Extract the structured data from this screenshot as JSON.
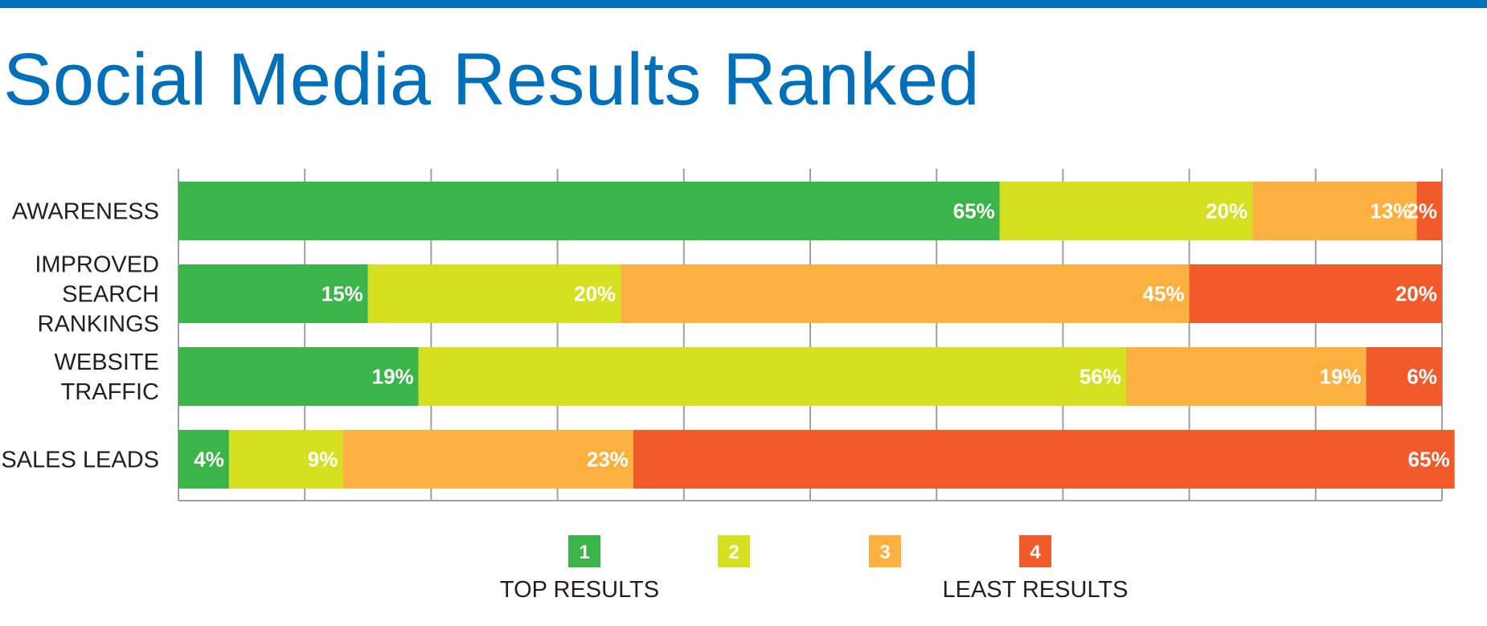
{
  "header": {
    "title": "Social Media Results Ranked",
    "accent_color": "#0072bc"
  },
  "chart_data": {
    "type": "bar",
    "orientation": "horizontal",
    "stacked": true,
    "normalized": true,
    "title": "Social Media Results Ranked",
    "xlabel": "",
    "ylabel": "",
    "xlim": [
      0,
      100
    ],
    "grid": "vertical",
    "legend_position": "bottom",
    "categories": [
      [
        "AWARENESS"
      ],
      [
        "IMPROVED",
        "SEARCH",
        "RANKINGS"
      ],
      [
        "WEBSITE",
        "TRAFFIC"
      ],
      [
        "SALES LEADS"
      ]
    ],
    "series": [
      {
        "name": "1",
        "color": "#3bb54a",
        "values": [
          65,
          15,
          19,
          4
        ],
        "labels": [
          "65%",
          "15%",
          "19%",
          "4%"
        ]
      },
      {
        "name": "2",
        "color": "#d5e020",
        "values": [
          20,
          20,
          56,
          9
        ],
        "labels": [
          "20%",
          "20%",
          "56%",
          "9%"
        ]
      },
      {
        "name": "3",
        "color": "#fbb040",
        "values": [
          13,
          45,
          19,
          23
        ],
        "labels": [
          "13%",
          "45%",
          "19%",
          "23%"
        ]
      },
      {
        "name": "4",
        "color": "#f15a2b",
        "values": [
          2,
          20,
          6,
          65
        ],
        "labels": [
          "2%",
          "20%",
          "6%",
          "65%"
        ]
      }
    ]
  },
  "legend": {
    "top_caption": "TOP RESULTS",
    "least_caption": "LEAST RESULTS"
  }
}
